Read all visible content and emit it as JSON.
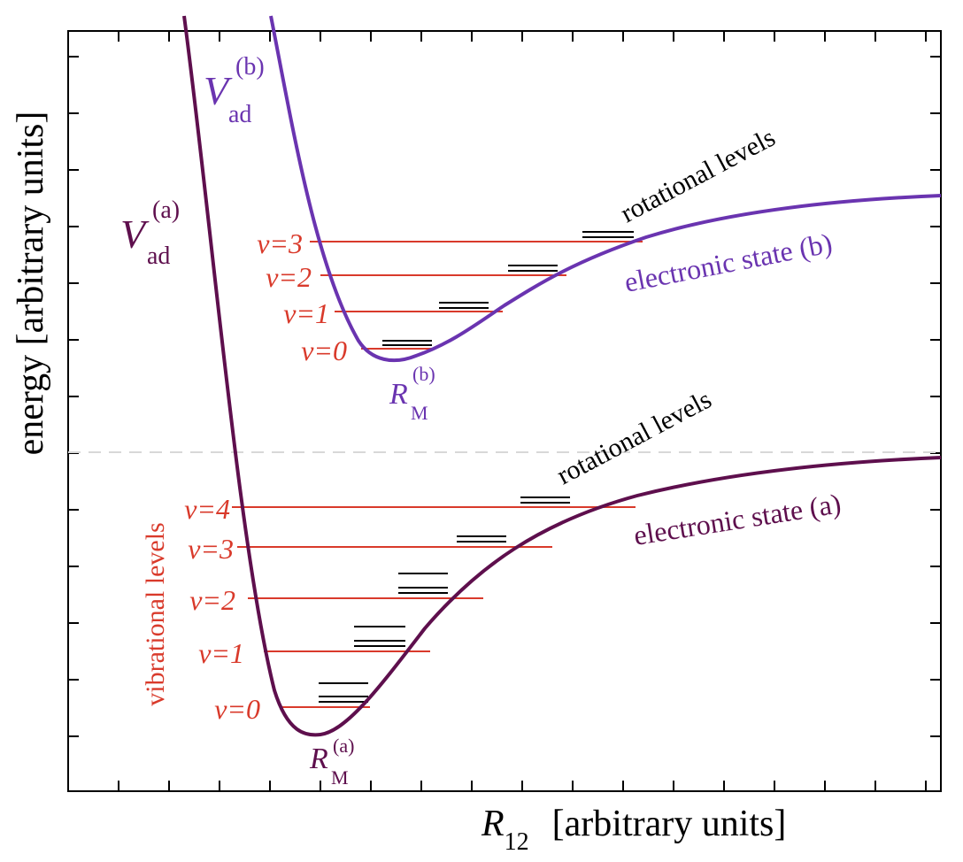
{
  "colors": {
    "state_a": "#5e0f4d",
    "state_b": "#6a34b0",
    "vibrational": "#d93a2b",
    "rotational": "#000000",
    "dissociation_line": "#d8d8d8",
    "axis": "#000000"
  },
  "axes": {
    "ylabel": "energy   [arbitrary units]",
    "xlabel_symbol": "R",
    "xlabel_subscript": "12",
    "xlabel_units": "[arbitrary units]",
    "x_tick_count": 17,
    "y_tick_count": 13
  },
  "state_a": {
    "curve_label": "electronic state (a)",
    "V_symbol": "V",
    "V_superscript": "(a)",
    "V_subscript": "ad",
    "RM_symbol": "R",
    "RM_subscript": "M",
    "RM_superscript": "(a)",
    "rotational_label": "rotational levels",
    "vibrational_title": "vibrational levels",
    "levels": [
      {
        "label": "v=0",
        "v": 0
      },
      {
        "label": "v=1",
        "v": 1
      },
      {
        "label": "v=2",
        "v": 2
      },
      {
        "label": "v=3",
        "v": 3
      },
      {
        "label": "v=4",
        "v": 4
      }
    ]
  },
  "state_b": {
    "curve_label": "electronic state (b)",
    "V_symbol": "V",
    "V_superscript": "(b)",
    "V_subscript": "ad",
    "RM_symbol": "R",
    "RM_subscript": "M",
    "RM_superscript": "(b)",
    "rotational_label": "rotational levels",
    "levels": [
      {
        "label": "v=0",
        "v": 0
      },
      {
        "label": "v=1",
        "v": 1
      },
      {
        "label": "v=2",
        "v": 2
      },
      {
        "label": "v=3",
        "v": 3
      }
    ]
  }
}
